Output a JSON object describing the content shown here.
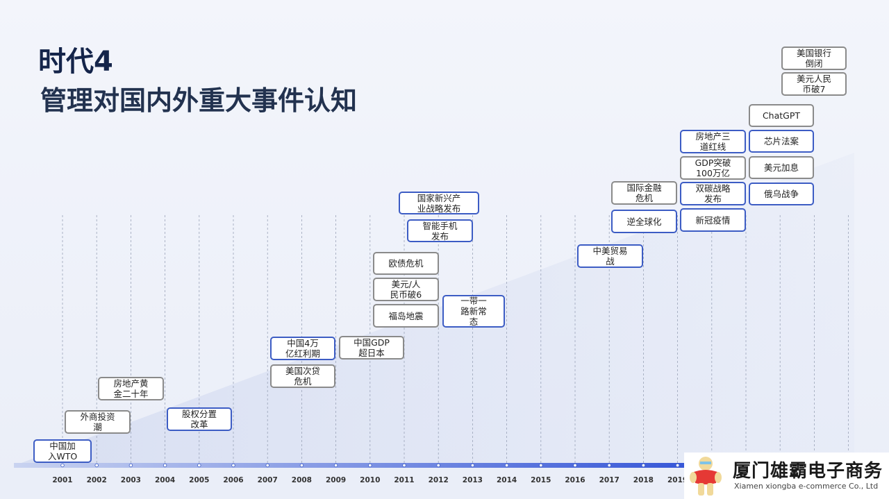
{
  "header": {
    "title": "时代4",
    "subtitle": "管理对国内外重大事件认知"
  },
  "colors": {
    "accent": "#3c5cc4",
    "gray_border": "#8a8a8a",
    "title": "#14244a"
  },
  "years": [
    "2001",
    "2002",
    "2003",
    "2004",
    "2005",
    "2006",
    "2007",
    "2008",
    "2009",
    "2010",
    "2011",
    "2012",
    "2013",
    "2014",
    "2015",
    "2016",
    "2017",
    "2018",
    "2019"
  ],
  "events": [
    {
      "label": "中国加\n入WTO",
      "style": "blue"
    },
    {
      "label": "外商投资\n潮",
      "style": "gray"
    },
    {
      "label": "房地产黄\n金二十年",
      "style": "gray"
    },
    {
      "label": "股权分置\n改革",
      "style": "blue"
    },
    {
      "label": "中国4万\n亿红利期",
      "style": "blue"
    },
    {
      "label": "美国次贷\n危机",
      "style": "gray"
    },
    {
      "label": "中国GDP\n超日本",
      "style": "gray"
    },
    {
      "label": "福岛地震",
      "style": "gray"
    },
    {
      "label": "美元/人\n民币破6",
      "style": "gray"
    },
    {
      "label": "欧债危机",
      "style": "gray"
    },
    {
      "label": "一带一\n路新常\n态",
      "style": "blue"
    },
    {
      "label": "智能手机\n发布",
      "style": "blue"
    },
    {
      "label": "国家新兴产\n业战略发布",
      "style": "blue"
    },
    {
      "label": "中美贸易\n战",
      "style": "blue"
    },
    {
      "label": "逆全球化",
      "style": "blue"
    },
    {
      "label": "国际金融\n危机",
      "style": "gray"
    },
    {
      "label": "新冠疫情",
      "style": "blue"
    },
    {
      "label": "双碳战略\n发布",
      "style": "blue"
    },
    {
      "label": "GDP突破\n100万亿",
      "style": "gray"
    },
    {
      "label": "房地产三\n道红线",
      "style": "blue"
    },
    {
      "label": "俄乌战争",
      "style": "blue"
    },
    {
      "label": "美元加息",
      "style": "gray"
    },
    {
      "label": "芯片法案",
      "style": "blue"
    },
    {
      "label": "ChatGPT",
      "style": "gray"
    },
    {
      "label": "美元人民\n币破7",
      "style": "gray"
    },
    {
      "label": "美国银行\n倒闭",
      "style": "gray"
    }
  ],
  "logo": {
    "name_cn": "厦门雄霸电子商务",
    "name_en": "Xiamen xiongba e-commerce Co., Ltd",
    "badge": "ymgk"
  }
}
